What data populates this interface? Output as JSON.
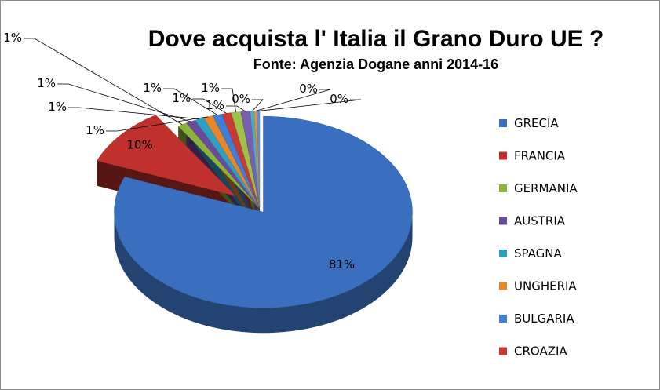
{
  "chart_data": {
    "type": "pie",
    "title": "Dove acquista l' Italia il Grano Duro UE ?",
    "subtitle": "Fonte: Agenzia Dogane anni 2014-16",
    "slices": [
      {
        "name": "GRECIA",
        "value": 81,
        "label": "81%",
        "color": "#3a6fbf"
      },
      {
        "name": "FRANCIA",
        "value": 10,
        "label": "10%",
        "color": "#c0302c"
      },
      {
        "name": "GERMANIA",
        "value": 1,
        "label": "1%",
        "color": "#8db33a"
      },
      {
        "name": "AUSTRIA",
        "value": 1,
        "label": "1%",
        "color": "#6a4a9c"
      },
      {
        "name": "SPAGNA",
        "value": 1,
        "label": "1%",
        "color": "#2f9fbf"
      },
      {
        "name": "UNGHERIA",
        "value": 1,
        "label": "1%",
        "color": "#e8862a"
      },
      {
        "name": "BULGARIA",
        "value": 1,
        "label": "1%",
        "color": "#3f7fd6"
      },
      {
        "name": "CROAZIA",
        "value": 1,
        "label": "1%",
        "color": "#c83a36"
      },
      {
        "name": "",
        "value": 1,
        "label": "1%",
        "color": "#9cc24a"
      },
      {
        "name": "",
        "value": 1,
        "label": "1%",
        "color": "#7a5fb0"
      },
      {
        "name": "",
        "value": 0.4,
        "label": "0%",
        "color": "#3fb0d0"
      },
      {
        "name": "",
        "value": 0.3,
        "label": "0%",
        "color": "#f0902e"
      },
      {
        "name": "",
        "value": 0.3,
        "label": "0%",
        "color": "#5a8fe0"
      }
    ],
    "legend_position": "right"
  }
}
